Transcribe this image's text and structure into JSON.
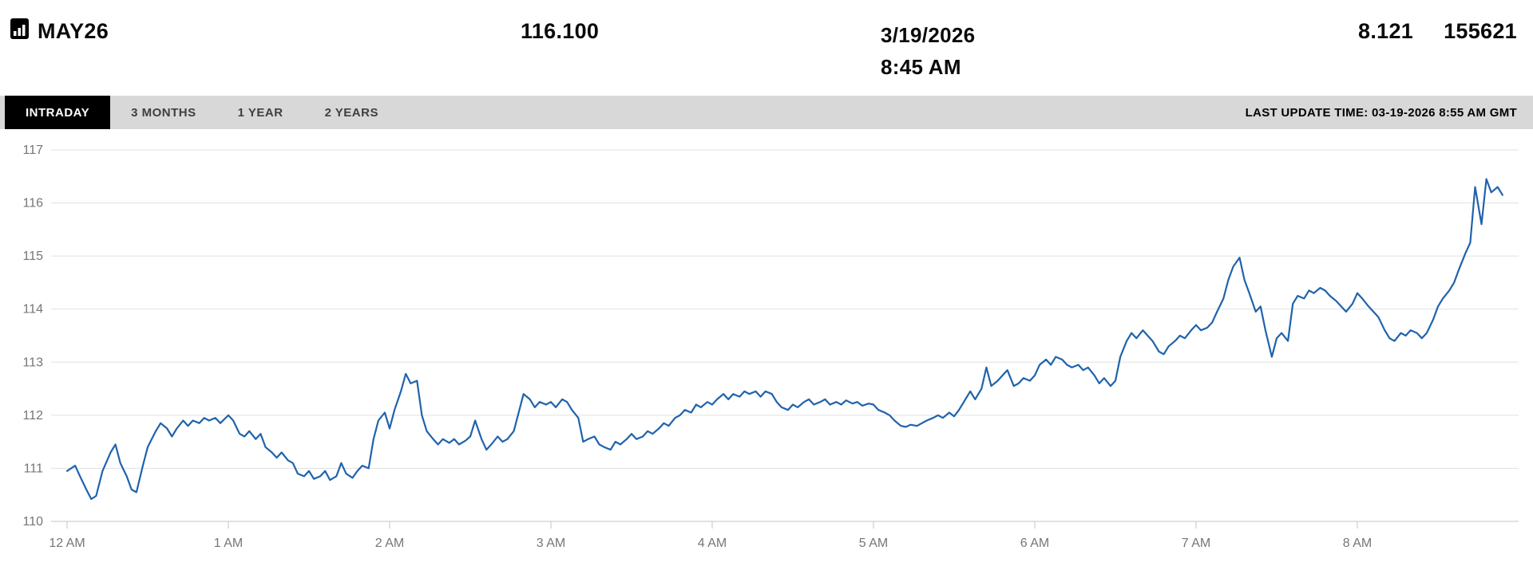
{
  "header": {
    "symbol": "MAY26",
    "symbol_icon": "chart-document-icon",
    "price": "116.100",
    "date": "3/19/2026",
    "time": "8:45 AM",
    "change": "8.121",
    "volume": "155621"
  },
  "tabs": {
    "items": [
      {
        "label": "INTRADAY",
        "active": true
      },
      {
        "label": "3 MONTHS",
        "active": false
      },
      {
        "label": "1 YEAR",
        "active": false
      },
      {
        "label": "2 YEARS",
        "active": false
      }
    ],
    "last_update_label": "LAST UPDATE TIME: 03-19-2026 8:55 AM GMT"
  },
  "colors": {
    "line": "#1f63ac",
    "tab_bar_bg": "#d8d8d8",
    "active_tab_bg": "#000000",
    "grid": "#e0e0e0",
    "axis_line": "#c4c4c4",
    "axis_text": "#767676"
  },
  "chart_data": {
    "type": "line",
    "title": "MAY26 intraday price",
    "x_unit": "hours since 12 AM",
    "x_range": [
      0,
      9
    ],
    "y_range": [
      110,
      117
    ],
    "grid": "horizontal",
    "legend": "none",
    "y_ticks": [
      110,
      111,
      112,
      113,
      114,
      115,
      116,
      117
    ],
    "x_ticks": [
      "12 AM",
      "1 AM",
      "2 AM",
      "3 AM",
      "4 AM",
      "5 AM",
      "6 AM",
      "7 AM",
      "8 AM"
    ],
    "series": [
      {
        "name": "price",
        "points": [
          [
            0,
            110.95
          ],
          [
            0.05,
            111.05
          ],
          [
            0.08,
            110.85
          ],
          [
            0.12,
            110.6
          ],
          [
            0.15,
            110.42
          ],
          [
            0.18,
            110.48
          ],
          [
            0.22,
            110.95
          ],
          [
            0.27,
            111.3
          ],
          [
            0.3,
            111.45
          ],
          [
            0.33,
            111.1
          ],
          [
            0.37,
            110.85
          ],
          [
            0.4,
            110.6
          ],
          [
            0.43,
            110.55
          ],
          [
            0.47,
            111.05
          ],
          [
            0.5,
            111.4
          ],
          [
            0.55,
            111.7
          ],
          [
            0.58,
            111.85
          ],
          [
            0.62,
            111.75
          ],
          [
            0.65,
            111.6
          ],
          [
            0.68,
            111.75
          ],
          [
            0.72,
            111.9
          ],
          [
            0.75,
            111.8
          ],
          [
            0.78,
            111.9
          ],
          [
            0.82,
            111.85
          ],
          [
            0.85,
            111.95
          ],
          [
            0.88,
            111.9
          ],
          [
            0.92,
            111.95
          ],
          [
            0.95,
            111.85
          ],
          [
            1,
            112
          ],
          [
            1.03,
            111.9
          ],
          [
            1.07,
            111.65
          ],
          [
            1.1,
            111.6
          ],
          [
            1.13,
            111.7
          ],
          [
            1.17,
            111.55
          ],
          [
            1.2,
            111.65
          ],
          [
            1.23,
            111.4
          ],
          [
            1.27,
            111.3
          ],
          [
            1.3,
            111.2
          ],
          [
            1.33,
            111.3
          ],
          [
            1.37,
            111.15
          ],
          [
            1.4,
            111.1
          ],
          [
            1.43,
            110.9
          ],
          [
            1.47,
            110.85
          ],
          [
            1.5,
            110.95
          ],
          [
            1.53,
            110.8
          ],
          [
            1.57,
            110.85
          ],
          [
            1.6,
            110.95
          ],
          [
            1.63,
            110.78
          ],
          [
            1.67,
            110.85
          ],
          [
            1.7,
            111.1
          ],
          [
            1.73,
            110.9
          ],
          [
            1.77,
            110.82
          ],
          [
            1.8,
            110.95
          ],
          [
            1.83,
            111.05
          ],
          [
            1.87,
            111
          ],
          [
            1.9,
            111.55
          ],
          [
            1.93,
            111.9
          ],
          [
            1.97,
            112.05
          ],
          [
            2,
            111.75
          ],
          [
            2.03,
            112.1
          ],
          [
            2.07,
            112.45
          ],
          [
            2.1,
            112.78
          ],
          [
            2.13,
            112.6
          ],
          [
            2.17,
            112.65
          ],
          [
            2.2,
            112
          ],
          [
            2.23,
            111.7
          ],
          [
            2.27,
            111.55
          ],
          [
            2.3,
            111.45
          ],
          [
            2.33,
            111.55
          ],
          [
            2.37,
            111.48
          ],
          [
            2.4,
            111.55
          ],
          [
            2.43,
            111.45
          ],
          [
            2.47,
            111.52
          ],
          [
            2.5,
            111.6
          ],
          [
            2.53,
            111.9
          ],
          [
            2.57,
            111.55
          ],
          [
            2.6,
            111.35
          ],
          [
            2.63,
            111.45
          ],
          [
            2.67,
            111.6
          ],
          [
            2.7,
            111.5
          ],
          [
            2.73,
            111.55
          ],
          [
            2.77,
            111.7
          ],
          [
            2.8,
            112.05
          ],
          [
            2.83,
            112.4
          ],
          [
            2.87,
            112.3
          ],
          [
            2.9,
            112.15
          ],
          [
            2.93,
            112.25
          ],
          [
            2.97,
            112.2
          ],
          [
            3,
            112.25
          ],
          [
            3.03,
            112.15
          ],
          [
            3.07,
            112.3
          ],
          [
            3.1,
            112.25
          ],
          [
            3.13,
            112.1
          ],
          [
            3.17,
            111.95
          ],
          [
            3.2,
            111.5
          ],
          [
            3.23,
            111.55
          ],
          [
            3.27,
            111.6
          ],
          [
            3.3,
            111.45
          ],
          [
            3.33,
            111.4
          ],
          [
            3.37,
            111.35
          ],
          [
            3.4,
            111.5
          ],
          [
            3.43,
            111.45
          ],
          [
            3.47,
            111.55
          ],
          [
            3.5,
            111.65
          ],
          [
            3.53,
            111.55
          ],
          [
            3.57,
            111.6
          ],
          [
            3.6,
            111.7
          ],
          [
            3.63,
            111.65
          ],
          [
            3.67,
            111.75
          ],
          [
            3.7,
            111.85
          ],
          [
            3.73,
            111.8
          ],
          [
            3.77,
            111.95
          ],
          [
            3.8,
            112
          ],
          [
            3.83,
            112.1
          ],
          [
            3.87,
            112.05
          ],
          [
            3.9,
            112.2
          ],
          [
            3.93,
            112.15
          ],
          [
            3.97,
            112.25
          ],
          [
            4,
            112.2
          ],
          [
            4.03,
            112.3
          ],
          [
            4.07,
            112.4
          ],
          [
            4.1,
            112.3
          ],
          [
            4.13,
            112.4
          ],
          [
            4.17,
            112.35
          ],
          [
            4.2,
            112.45
          ],
          [
            4.23,
            112.4
          ],
          [
            4.27,
            112.45
          ],
          [
            4.3,
            112.35
          ],
          [
            4.33,
            112.45
          ],
          [
            4.37,
            112.4
          ],
          [
            4.4,
            112.25
          ],
          [
            4.43,
            112.15
          ],
          [
            4.47,
            112.1
          ],
          [
            4.5,
            112.2
          ],
          [
            4.53,
            112.15
          ],
          [
            4.57,
            112.25
          ],
          [
            4.6,
            112.3
          ],
          [
            4.63,
            112.2
          ],
          [
            4.67,
            112.25
          ],
          [
            4.7,
            112.3
          ],
          [
            4.73,
            112.2
          ],
          [
            4.77,
            112.25
          ],
          [
            4.8,
            112.2
          ],
          [
            4.83,
            112.28
          ],
          [
            4.87,
            112.22
          ],
          [
            4.9,
            112.25
          ],
          [
            4.93,
            112.18
          ],
          [
            4.97,
            112.22
          ],
          [
            5,
            112.2
          ],
          [
            5.03,
            112.1
          ],
          [
            5.07,
            112.05
          ],
          [
            5.1,
            112
          ],
          [
            5.13,
            111.9
          ],
          [
            5.17,
            111.8
          ],
          [
            5.2,
            111.78
          ],
          [
            5.23,
            111.82
          ],
          [
            5.27,
            111.8
          ],
          [
            5.3,
            111.85
          ],
          [
            5.33,
            111.9
          ],
          [
            5.37,
            111.95
          ],
          [
            5.4,
            112
          ],
          [
            5.43,
            111.95
          ],
          [
            5.47,
            112.05
          ],
          [
            5.5,
            111.98
          ],
          [
            5.53,
            112.1
          ],
          [
            5.57,
            112.3
          ],
          [
            5.6,
            112.45
          ],
          [
            5.63,
            112.3
          ],
          [
            5.67,
            112.5
          ],
          [
            5.7,
            112.9
          ],
          [
            5.73,
            112.55
          ],
          [
            5.77,
            112.65
          ],
          [
            5.8,
            112.75
          ],
          [
            5.83,
            112.85
          ],
          [
            5.87,
            112.55
          ],
          [
            5.9,
            112.6
          ],
          [
            5.93,
            112.7
          ],
          [
            5.97,
            112.65
          ],
          [
            6,
            112.75
          ],
          [
            6.03,
            112.95
          ],
          [
            6.07,
            113.05
          ],
          [
            6.1,
            112.95
          ],
          [
            6.13,
            113.1
          ],
          [
            6.17,
            113.05
          ],
          [
            6.2,
            112.95
          ],
          [
            6.23,
            112.9
          ],
          [
            6.27,
            112.95
          ],
          [
            6.3,
            112.85
          ],
          [
            6.33,
            112.9
          ],
          [
            6.37,
            112.75
          ],
          [
            6.4,
            112.6
          ],
          [
            6.43,
            112.7
          ],
          [
            6.47,
            112.55
          ],
          [
            6.5,
            112.65
          ],
          [
            6.53,
            113.1
          ],
          [
            6.57,
            113.4
          ],
          [
            6.6,
            113.55
          ],
          [
            6.63,
            113.45
          ],
          [
            6.67,
            113.6
          ],
          [
            6.7,
            113.5
          ],
          [
            6.73,
            113.4
          ],
          [
            6.77,
            113.2
          ],
          [
            6.8,
            113.15
          ],
          [
            6.83,
            113.3
          ],
          [
            6.87,
            113.4
          ],
          [
            6.9,
            113.5
          ],
          [
            6.93,
            113.45
          ],
          [
            6.97,
            113.6
          ],
          [
            7,
            113.7
          ],
          [
            7.03,
            113.6
          ],
          [
            7.07,
            113.65
          ],
          [
            7.1,
            113.75
          ],
          [
            7.13,
            113.95
          ],
          [
            7.17,
            114.2
          ],
          [
            7.2,
            114.55
          ],
          [
            7.23,
            114.8
          ],
          [
            7.27,
            114.97
          ],
          [
            7.3,
            114.55
          ],
          [
            7.33,
            114.3
          ],
          [
            7.37,
            113.95
          ],
          [
            7.4,
            114.05
          ],
          [
            7.43,
            113.6
          ],
          [
            7.47,
            113.1
          ],
          [
            7.5,
            113.45
          ],
          [
            7.53,
            113.55
          ],
          [
            7.57,
            113.4
          ],
          [
            7.6,
            114.1
          ],
          [
            7.63,
            114.25
          ],
          [
            7.67,
            114.2
          ],
          [
            7.7,
            114.35
          ],
          [
            7.73,
            114.3
          ],
          [
            7.77,
            114.4
          ],
          [
            7.8,
            114.35
          ],
          [
            7.83,
            114.25
          ],
          [
            7.87,
            114.15
          ],
          [
            7.9,
            114.05
          ],
          [
            7.93,
            113.95
          ],
          [
            7.97,
            114.1
          ],
          [
            8,
            114.3
          ],
          [
            8.03,
            114.2
          ],
          [
            8.07,
            114.05
          ],
          [
            8.1,
            113.95
          ],
          [
            8.13,
            113.85
          ],
          [
            8.17,
            113.6
          ],
          [
            8.2,
            113.45
          ],
          [
            8.23,
            113.4
          ],
          [
            8.27,
            113.55
          ],
          [
            8.3,
            113.5
          ],
          [
            8.33,
            113.6
          ],
          [
            8.37,
            113.55
          ],
          [
            8.4,
            113.45
          ],
          [
            8.43,
            113.55
          ],
          [
            8.47,
            113.8
          ],
          [
            8.5,
            114.05
          ],
          [
            8.53,
            114.2
          ],
          [
            8.57,
            114.35
          ],
          [
            8.6,
            114.5
          ],
          [
            8.63,
            114.75
          ],
          [
            8.67,
            115.05
          ],
          [
            8.7,
            115.25
          ],
          [
            8.73,
            116.3
          ],
          [
            8.77,
            115.6
          ],
          [
            8.8,
            116.45
          ],
          [
            8.83,
            116.2
          ],
          [
            8.87,
            116.3
          ],
          [
            8.9,
            116.15
          ]
        ]
      }
    ]
  }
}
